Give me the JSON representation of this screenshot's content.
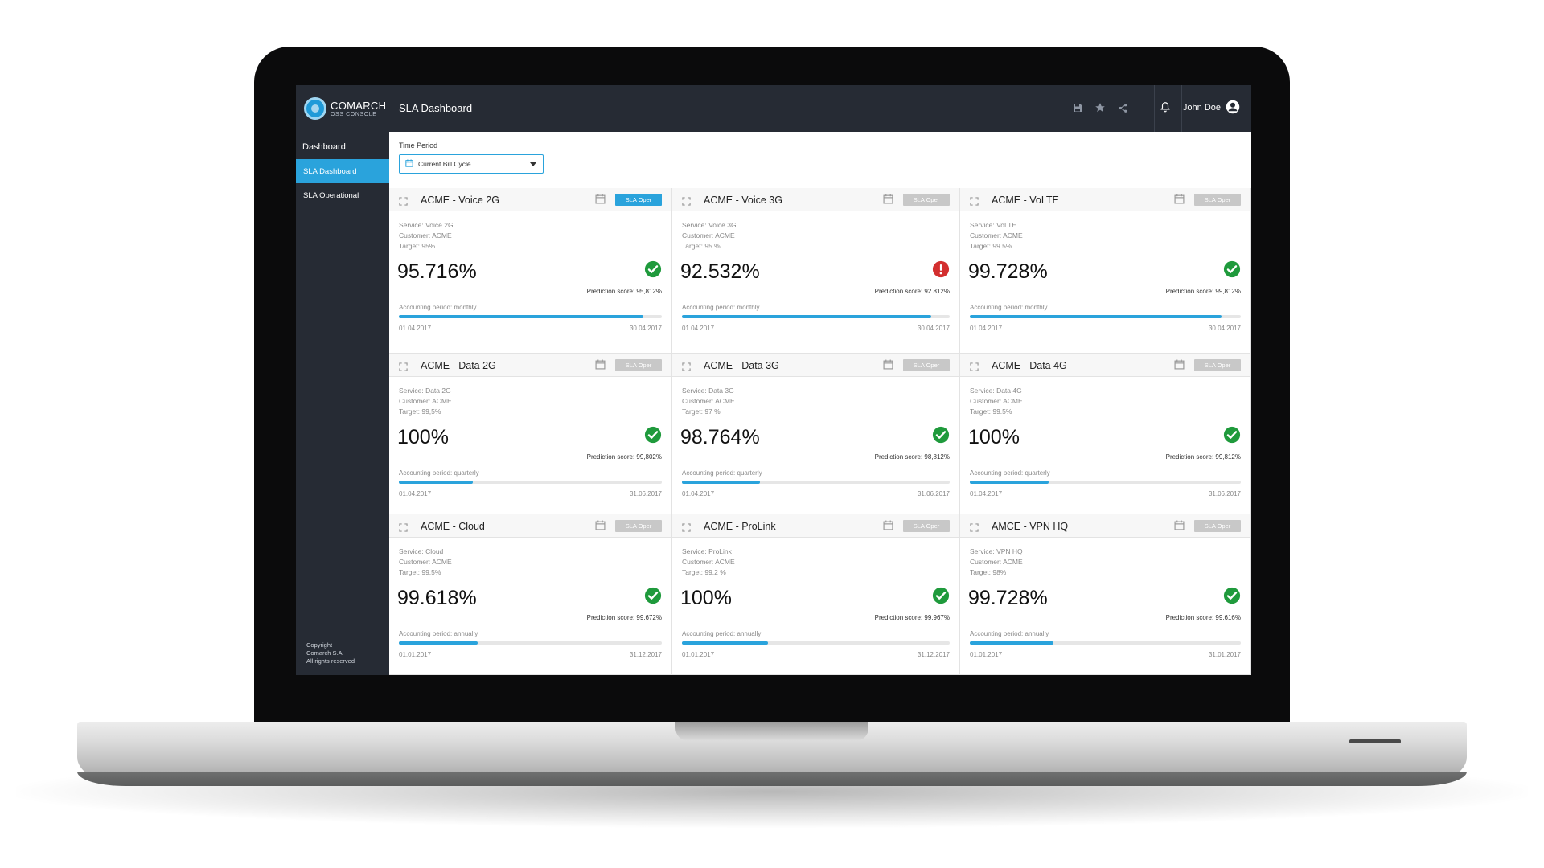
{
  "app": {
    "logo_line1": "COMARCH",
    "logo_line2": "OSS CONSOLE",
    "page_title": "SLA Dashboard",
    "user_name": "John Doe"
  },
  "sidebar": {
    "heading": "Dashboard",
    "items": [
      {
        "label": "SLA Dashboard",
        "active": true
      },
      {
        "label": "SLA Operational",
        "active": false
      }
    ],
    "copyright": [
      "Copyright",
      "Comarch S.A.",
      "All rights reserved"
    ]
  },
  "filter": {
    "label": "Time Period",
    "value": "Current Bill Cycle"
  },
  "cards": [
    {
      "title": "ACME - Voice 2G",
      "badge": "SLA Oper",
      "badge_active": true,
      "service": "Service: Voice 2G",
      "customer": "Customer: ACME",
      "target": "Target: 95%",
      "value": "95.716%",
      "status": "ok",
      "prediction": "Prediction score: 95,812%",
      "period": "Accounting period: monthly",
      "progress": 0.93,
      "start": "01.04.2017",
      "end": "30.04.2017"
    },
    {
      "title": "ACME - Voice 3G",
      "badge": "SLA Oper",
      "badge_active": false,
      "service": "Service: Voice 3G",
      "customer": "Customer: ACME",
      "target": "Target: 95 %",
      "value": "92.532%",
      "status": "error",
      "prediction": "Prediction score: 92.812%",
      "period": "Accounting period: monthly",
      "progress": 0.93,
      "start": "01.04.2017",
      "end": "30.04.2017"
    },
    {
      "title": "ACME - VoLTE",
      "badge": "SLA Oper",
      "badge_active": false,
      "service": "Service: VoLTE",
      "customer": "Customer: ACME",
      "target": "Target: 99.5%",
      "value": "99.728%",
      "status": "ok",
      "prediction": "Prediction score: 99,812%",
      "period": "Accounting period: monthly",
      "progress": 0.93,
      "start": "01.04.2017",
      "end": "30.04.2017"
    },
    {
      "title": "ACME - Data 2G",
      "badge": "SLA Oper",
      "badge_active": false,
      "service": "Service: Data 2G",
      "customer": "Customer: ACME",
      "target": "Target: 99,5%",
      "value": "100%",
      "status": "ok",
      "prediction": "Prediction score: 99,802%",
      "period": "Accounting period: quarterly",
      "progress": 0.28,
      "start": "01.04.2017",
      "end": "31.06.2017"
    },
    {
      "title": "ACME - Data 3G",
      "badge": "SLA Oper",
      "badge_active": false,
      "service": "Service: Data 3G",
      "customer": "Customer: ACME",
      "target": "Target: 97 %",
      "value": "98.764%",
      "status": "ok",
      "prediction": "Prediction score: 98,812%",
      "period": "Accounting period: quarterly",
      "progress": 0.29,
      "start": "01.04.2017",
      "end": "31.06.2017"
    },
    {
      "title": "ACME - Data 4G",
      "badge": "SLA Oper",
      "badge_active": false,
      "service": "Service: Data 4G",
      "customer": "Customer: ACME",
      "target": "Target: 99.5%",
      "value": "100%",
      "status": "ok",
      "prediction": "Prediction score: 99,812%",
      "period": "Accounting period: quarterly",
      "progress": 0.29,
      "start": "01.04.2017",
      "end": "31.06.2017"
    },
    {
      "title": "ACME - Cloud",
      "badge": "SLA Oper",
      "badge_active": false,
      "service": "Service: Cloud",
      "customer": "Customer: ACME",
      "target": "Target: 99.5%",
      "value": "99.618%",
      "status": "ok",
      "prediction": "Prediction score: 99,672%",
      "period": "Accounting period: annually",
      "progress": 0.3,
      "start": "01.01.2017",
      "end": "31.12.2017"
    },
    {
      "title": "ACME - ProLink",
      "badge": "SLA Oper",
      "badge_active": false,
      "service": "Service: ProLink",
      "customer": "Customer: ACME",
      "target": "Target: 99.2 %",
      "value": "100%",
      "status": "ok",
      "prediction": "Prediction score: 99,967%",
      "period": "Accounting period: annually",
      "progress": 0.32,
      "start": "01.01.2017",
      "end": "31.12.2017"
    },
    {
      "title": "AMCE - VPN HQ",
      "badge": "SLA Oper",
      "badge_active": false,
      "service": "Service: VPN HQ",
      "customer": "Customer: ACME",
      "target": "Target: 98%",
      "value": "99.728%",
      "status": "ok",
      "prediction": "Prediction score: 99,616%",
      "period": "Accounting period: annually",
      "progress": 0.31,
      "start": "01.01.2017",
      "end": "31.01.2017"
    }
  ],
  "colors": {
    "accent": "#2aa3dc",
    "topbar": "#262b34",
    "ok": "#1f9a3c",
    "error": "#d32f2f",
    "badge_inactive": "#c8c8c8"
  },
  "icons": {
    "save": "save-icon",
    "star": "star-icon",
    "share": "share-icon",
    "bell": "bell-icon",
    "user": "user-avatar-icon",
    "calendar": "calendar-icon",
    "expand": "expand-icon",
    "ok": "check-circle-icon",
    "error": "alert-circle-icon"
  }
}
